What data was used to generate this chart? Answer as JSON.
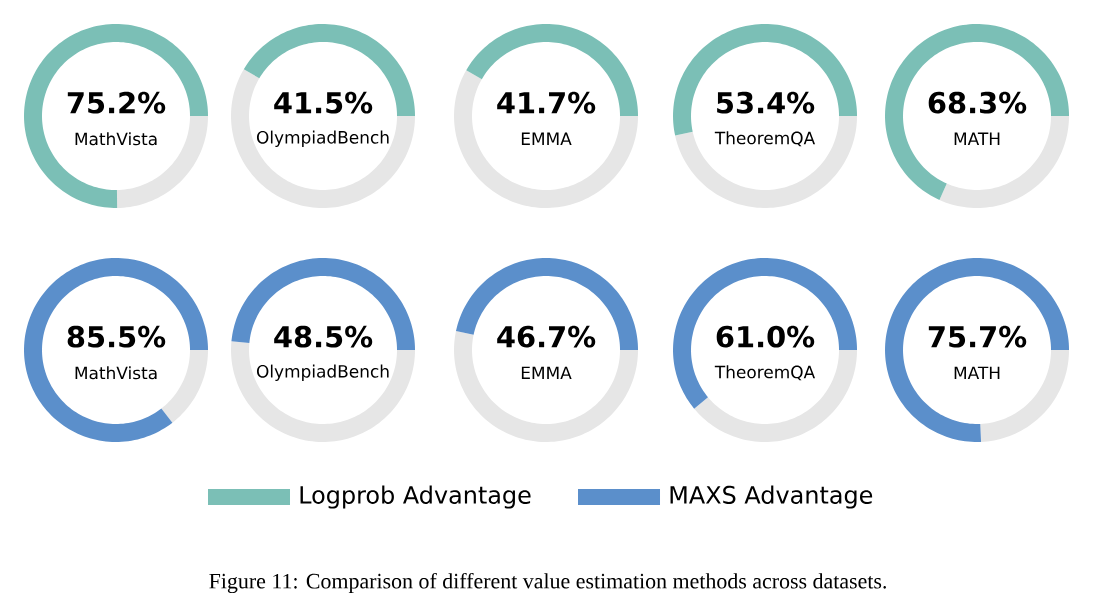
{
  "chart_data": [
    {
      "type": "donut",
      "title": "MathVista",
      "categories": [
        null,
        null
      ],
      "values": [
        75.2,
        24.8
      ],
      "colors": [
        "#7bbfb6",
        "#e6e6e6"
      ],
      "value_labels": [
        "75.2%",
        null
      ]
    },
    {
      "type": "donut",
      "title": "OlympiadBench",
      "categories": [
        null,
        null
      ],
      "values": [
        41.5,
        58.5
      ],
      "colors": [
        "#7bbfb6",
        "#e6e6e6"
      ],
      "value_labels": [
        "41.5%",
        null
      ]
    },
    {
      "type": "donut",
      "title": "EMMA",
      "categories": [
        null,
        null
      ],
      "values": [
        41.7,
        58.3
      ],
      "colors": [
        "#7bbfb6",
        "#e6e6e6"
      ],
      "value_labels": [
        "41.7%",
        null
      ]
    },
    {
      "type": "donut",
      "title": "TheoremQA",
      "categories": [
        null,
        null
      ],
      "values": [
        53.4,
        46.6
      ],
      "colors": [
        "#7bbfb6",
        "#e6e6e6"
      ],
      "value_labels": [
        "53.4%",
        null
      ]
    },
    {
      "type": "donut",
      "title": "MATH",
      "categories": [
        null,
        null
      ],
      "values": [
        68.3,
        31.7
      ],
      "colors": [
        "#7bbfb6",
        "#e6e6e6"
      ],
      "value_labels": [
        "68.3%",
        null
      ]
    },
    {
      "type": "donut",
      "title": "MathVista",
      "categories": [
        null,
        null
      ],
      "values": [
        85.5,
        14.5
      ],
      "colors": [
        "#5b8fcb",
        "#e6e6e6"
      ],
      "value_labels": [
        "85.5%",
        null
      ]
    },
    {
      "type": "donut",
      "title": "OlympiadBench",
      "categories": [
        null,
        null
      ],
      "values": [
        48.5,
        51.5
      ],
      "colors": [
        "#5b8fcb",
        "#e6e6e6"
      ],
      "value_labels": [
        "48.5%",
        null
      ]
    },
    {
      "type": "donut",
      "title": "EMMA",
      "categories": [
        null,
        null
      ],
      "values": [
        46.7,
        53.3
      ],
      "colors": [
        "#5b8fcb",
        "#e6e6e6"
      ],
      "value_labels": [
        "46.7%",
        null
      ]
    },
    {
      "type": "donut",
      "title": "TheoremQA",
      "categories": [
        null,
        null
      ],
      "values": [
        61.0,
        39.0
      ],
      "colors": [
        "#5b8fcb",
        "#e6e6e6"
      ],
      "value_labels": [
        "61.0%",
        null
      ]
    },
    {
      "type": "donut",
      "title": "MATH",
      "categories": [
        null,
        null
      ],
      "values": [
        75.7,
        24.3
      ],
      "colors": [
        "#5b8fcb",
        "#e6e6e6"
      ],
      "value_labels": [
        "75.7%",
        null
      ]
    },
    {
      "type": "other",
      "legend": "bottom",
      "series": [
        {
          "name": "Logprob Advantage",
          "color": "#7bbfb6"
        },
        {
          "name": "MAXS Advantage",
          "color": "#5b8fcb"
        }
      ],
      "annotations": [
        "Figure 11: Comparison of different value estimation methods across datasets."
      ]
    }
  ]
}
